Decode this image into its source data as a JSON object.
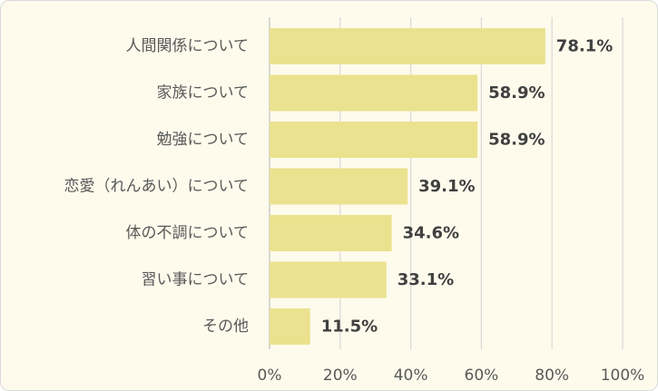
{
  "chart_data": {
    "type": "bar",
    "orientation": "horizontal",
    "categories": [
      "人間関係について",
      "家族について",
      "勉強について",
      "恋愛（れんあい）について",
      "体の不調について",
      "習い事について",
      "その他"
    ],
    "values": [
      78.1,
      58.9,
      58.9,
      39.1,
      34.6,
      33.1,
      11.5
    ],
    "data_labels": [
      "78.1%",
      "58.9%",
      "58.9%",
      "39.1%",
      "34.6%",
      "33.1%",
      "11.5%"
    ],
    "xlim": [
      0,
      100
    ],
    "x_ticks": [
      0,
      20,
      40,
      60,
      80,
      100
    ],
    "x_tick_labels": [
      "0%",
      "20%",
      "40%",
      "60%",
      "80%",
      "100%"
    ],
    "grid": true,
    "legend": "none",
    "colors": {
      "bar": "#ebe28f",
      "background": "#fefbec"
    }
  }
}
